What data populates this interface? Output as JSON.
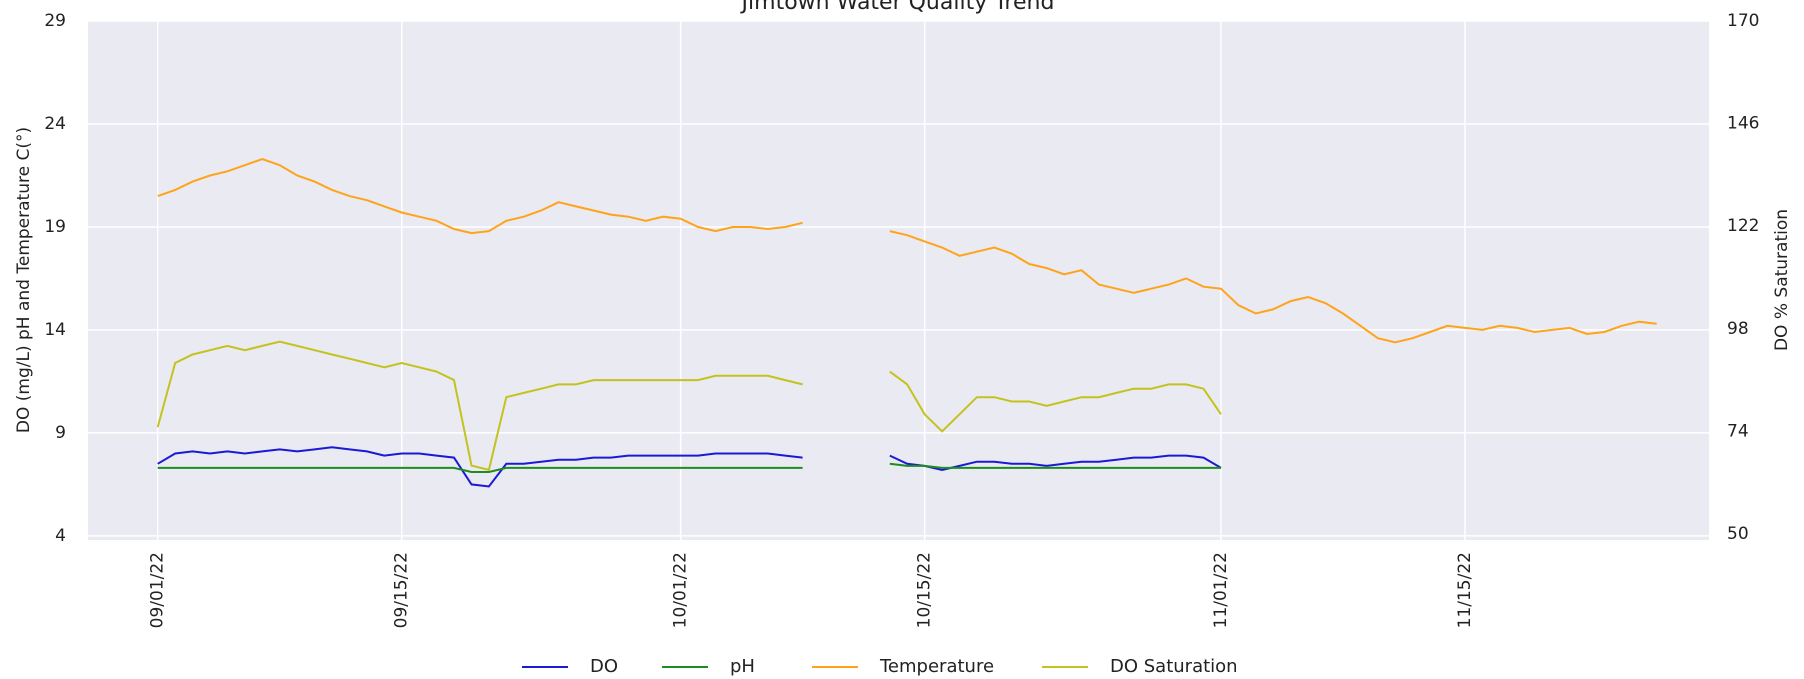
{
  "chart_data": {
    "type": "line",
    "title": "Jimtown Water Quality Trend",
    "y_label": "DO (mg/L) pH and Temperature C(°)",
    "y2_label": "DO % Saturation",
    "x": [
      "09/01/22",
      "09/02/22",
      "09/03/22",
      "09/04/22",
      "09/05/22",
      "09/06/22",
      "09/07/22",
      "09/08/22",
      "09/09/22",
      "09/10/22",
      "09/11/22",
      "09/12/22",
      "09/13/22",
      "09/14/22",
      "09/15/22",
      "09/16/22",
      "09/17/22",
      "09/18/22",
      "09/19/22",
      "09/20/22",
      "09/21/22",
      "09/22/22",
      "09/23/22",
      "09/24/22",
      "09/25/22",
      "09/26/22",
      "09/27/22",
      "09/28/22",
      "09/29/22",
      "09/30/22",
      "10/01/22",
      "10/02/22",
      "10/03/22",
      "10/04/22",
      "10/05/22",
      "10/06/22",
      "10/07/22",
      "10/08/22",
      "10/09/22",
      "10/10/22",
      "10/11/22",
      "10/12/22",
      "10/13/22",
      "10/14/22",
      "10/15/22",
      "10/16/22",
      "10/17/22",
      "10/18/22",
      "10/19/22",
      "10/20/22",
      "10/21/22",
      "10/22/22",
      "10/23/22",
      "10/24/22",
      "10/25/22",
      "10/26/22",
      "10/27/22",
      "10/28/22",
      "10/29/22",
      "10/30/22",
      "10/31/22",
      "11/01/22",
      "11/02/22",
      "11/03/22",
      "11/04/22",
      "11/05/22",
      "11/06/22",
      "11/07/22",
      "11/08/22",
      "11/09/22",
      "11/10/22",
      "11/11/22",
      "11/12/22",
      "11/13/22",
      "11/14/22",
      "11/15/22",
      "11/16/22",
      "11/17/22",
      "11/18/22",
      "11/19/22",
      "11/20/22",
      "11/21/22",
      "11/22/22",
      "11/23/22",
      "11/24/22",
      "11/25/22",
      "11/26/22"
    ],
    "xlim": [
      "08/28/22",
      "11/29/22"
    ],
    "xticks": [
      "09/01/22",
      "09/15/22",
      "10/01/22",
      "10/15/22",
      "11/01/22",
      "11/15/22"
    ],
    "ylim": [
      3.8,
      29
    ],
    "yticks": [
      4,
      9,
      14,
      19,
      24,
      29
    ],
    "y2lim": [
      48.6,
      170
    ],
    "y2ticks": [
      50,
      74,
      98,
      122,
      146,
      170
    ],
    "grid": true,
    "legend": "bottom",
    "series": [
      {
        "name": "DO",
        "color": "#1a1ad6",
        "values": [
          7.5,
          8.0,
          8.1,
          8.0,
          8.1,
          8.0,
          8.1,
          8.2,
          8.1,
          8.2,
          8.3,
          8.2,
          8.1,
          7.9,
          8.0,
          8.0,
          7.9,
          7.8,
          6.5,
          6.4,
          7.5,
          7.5,
          7.6,
          7.7,
          7.7,
          7.8,
          7.8,
          7.9,
          7.9,
          7.9,
          7.9,
          7.9,
          8.0,
          8.0,
          8.0,
          8.0,
          7.9,
          7.8,
          null,
          null,
          null,
          null,
          7.9,
          7.5,
          7.4,
          7.2,
          7.4,
          7.6,
          7.6,
          7.5,
          7.5,
          7.4,
          7.5,
          7.6,
          7.6,
          7.7,
          7.8,
          7.8,
          7.9,
          7.9,
          7.8,
          7.3,
          null,
          null,
          null,
          null,
          null,
          null,
          null,
          null,
          null,
          null,
          null,
          null,
          null,
          null,
          null,
          null,
          null,
          null,
          null,
          null,
          null,
          null,
          null,
          null,
          null
        ]
      },
      {
        "name": "pH",
        "color": "#1e8c1e",
        "values": [
          7.3,
          7.3,
          7.3,
          7.3,
          7.3,
          7.3,
          7.3,
          7.3,
          7.3,
          7.3,
          7.3,
          7.3,
          7.3,
          7.3,
          7.3,
          7.3,
          7.3,
          7.3,
          7.1,
          7.1,
          7.3,
          7.3,
          7.3,
          7.3,
          7.3,
          7.3,
          7.3,
          7.3,
          7.3,
          7.3,
          7.3,
          7.3,
          7.3,
          7.3,
          7.3,
          7.3,
          7.3,
          7.3,
          null,
          null,
          null,
          null,
          7.5,
          7.4,
          7.4,
          7.3,
          7.3,
          7.3,
          7.3,
          7.3,
          7.3,
          7.3,
          7.3,
          7.3,
          7.3,
          7.3,
          7.3,
          7.3,
          7.3,
          7.3,
          7.3,
          7.3,
          null,
          null,
          null,
          null,
          null,
          null,
          null,
          null,
          null,
          null,
          null,
          null,
          null,
          null,
          null,
          null,
          null,
          null,
          null,
          null,
          null,
          null,
          null,
          null,
          null
        ]
      },
      {
        "name": "Temperature",
        "color": "#ffa31a",
        "values": [
          20.5,
          20.8,
          21.2,
          21.5,
          21.7,
          22.0,
          22.3,
          22.0,
          21.5,
          21.2,
          20.8,
          20.5,
          20.3,
          20.0,
          19.7,
          19.5,
          19.3,
          18.9,
          18.7,
          18.8,
          19.3,
          19.5,
          19.8,
          20.2,
          20.0,
          19.8,
          19.6,
          19.5,
          19.3,
          19.5,
          19.4,
          19.0,
          18.8,
          19.0,
          19.0,
          18.9,
          19.0,
          19.2,
          null,
          null,
          null,
          null,
          18.8,
          18.6,
          18.3,
          18.0,
          17.6,
          17.8,
          18.0,
          17.7,
          17.2,
          17.0,
          16.7,
          16.9,
          16.2,
          16.0,
          15.8,
          16.0,
          16.2,
          16.5,
          16.1,
          16.0,
          15.2,
          14.8,
          15.0,
          15.4,
          15.6,
          15.3,
          14.8,
          14.2,
          13.6,
          13.4,
          13.6,
          13.9,
          14.2,
          14.1,
          14.0,
          14.2,
          14.1,
          13.9,
          14.0,
          14.1,
          13.8,
          13.9,
          14.2,
          14.4,
          14.3
        ]
      },
      {
        "name": "DO Saturation",
        "color": "#c4c21c",
        "axis": "y2",
        "values": [
          75,
          90,
          92,
          93,
          94,
          93,
          94,
          95,
          94,
          93,
          92,
          91,
          90,
          89,
          90,
          89,
          88,
          86,
          66,
          65,
          82,
          83,
          84,
          85,
          85,
          86,
          86,
          86,
          86,
          86,
          86,
          86,
          87,
          87,
          87,
          87,
          86,
          85,
          null,
          null,
          null,
          null,
          88,
          85,
          78,
          74,
          78,
          82,
          82,
          81,
          81,
          80,
          81,
          82,
          82,
          83,
          84,
          84,
          85,
          85,
          84,
          78,
          null,
          null,
          null,
          null,
          null,
          null,
          null,
          null,
          null,
          null,
          null,
          null,
          null,
          null,
          null,
          null,
          null,
          null,
          null,
          null,
          null,
          null,
          null,
          null,
          null
        ]
      }
    ]
  }
}
